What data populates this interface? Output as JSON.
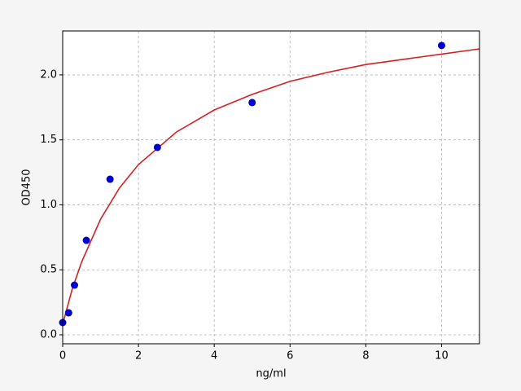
{
  "chart_data": {
    "type": "scatter",
    "x_label": "ng/ml",
    "y_label": "OD450",
    "xlim": [
      0,
      11
    ],
    "ylim": [
      -0.069,
      2.338
    ],
    "xticks": [
      0,
      2,
      4,
      6,
      8,
      10
    ],
    "yticks": [
      {
        "value": 0,
        "label": "0.0"
      },
      {
        "value": 0.5,
        "label": "0.5"
      },
      {
        "value": 1,
        "label": "1.0"
      },
      {
        "value": 1.5,
        "label": "1.5"
      },
      {
        "value": 2,
        "label": "2.0"
      }
    ],
    "grid": true,
    "series": [
      {
        "type": "line",
        "color": "#d62020",
        "x": [
          0,
          0.25,
          0.5,
          1,
          1.5,
          2,
          3,
          4,
          5,
          6,
          7,
          8,
          9,
          10,
          11
        ],
        "values": [
          0.08,
          0.35,
          0.56,
          0.89,
          1.13,
          1.31,
          1.56,
          1.73,
          1.85,
          1.95,
          2.02,
          2.08,
          2.12,
          2.16,
          2.2
        ]
      },
      {
        "type": "scatter",
        "color": "#0000cc",
        "x": [
          0,
          0.156,
          0.312,
          0.625,
          1.25,
          2.5,
          5,
          10
        ],
        "values": [
          0.094,
          0.169,
          0.382,
          0.727,
          1.197,
          1.442,
          1.787,
          2.226
        ]
      }
    ]
  }
}
